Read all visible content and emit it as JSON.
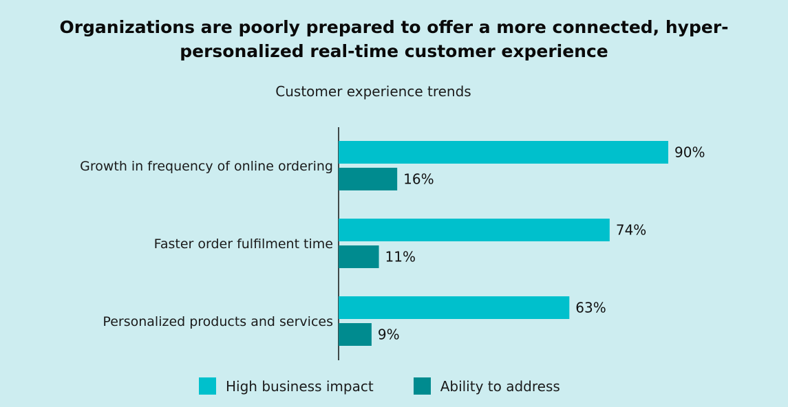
{
  "chart_data": {
    "type": "bar",
    "orientation": "horizontal",
    "title_lines": [
      "Organizations are poorly prepared to offer a more connected, hyper-",
      "personalized real-time customer experience"
    ],
    "subtitle": "Customer experience trends",
    "categories": [
      "Growth in frequency of online ordering",
      "Faster order fulfilment time",
      "Personalized products and services"
    ],
    "series": [
      {
        "name": "High business impact",
        "color": "#00c0cc",
        "values": [
          90,
          74,
          63
        ]
      },
      {
        "name": "Ability to address",
        "color": "#008b8f",
        "values": [
          16,
          11,
          9
        ]
      }
    ],
    "value_suffix": "%",
    "xlim": [
      0,
      100
    ],
    "grid": false,
    "legend_position": "bottom"
  }
}
